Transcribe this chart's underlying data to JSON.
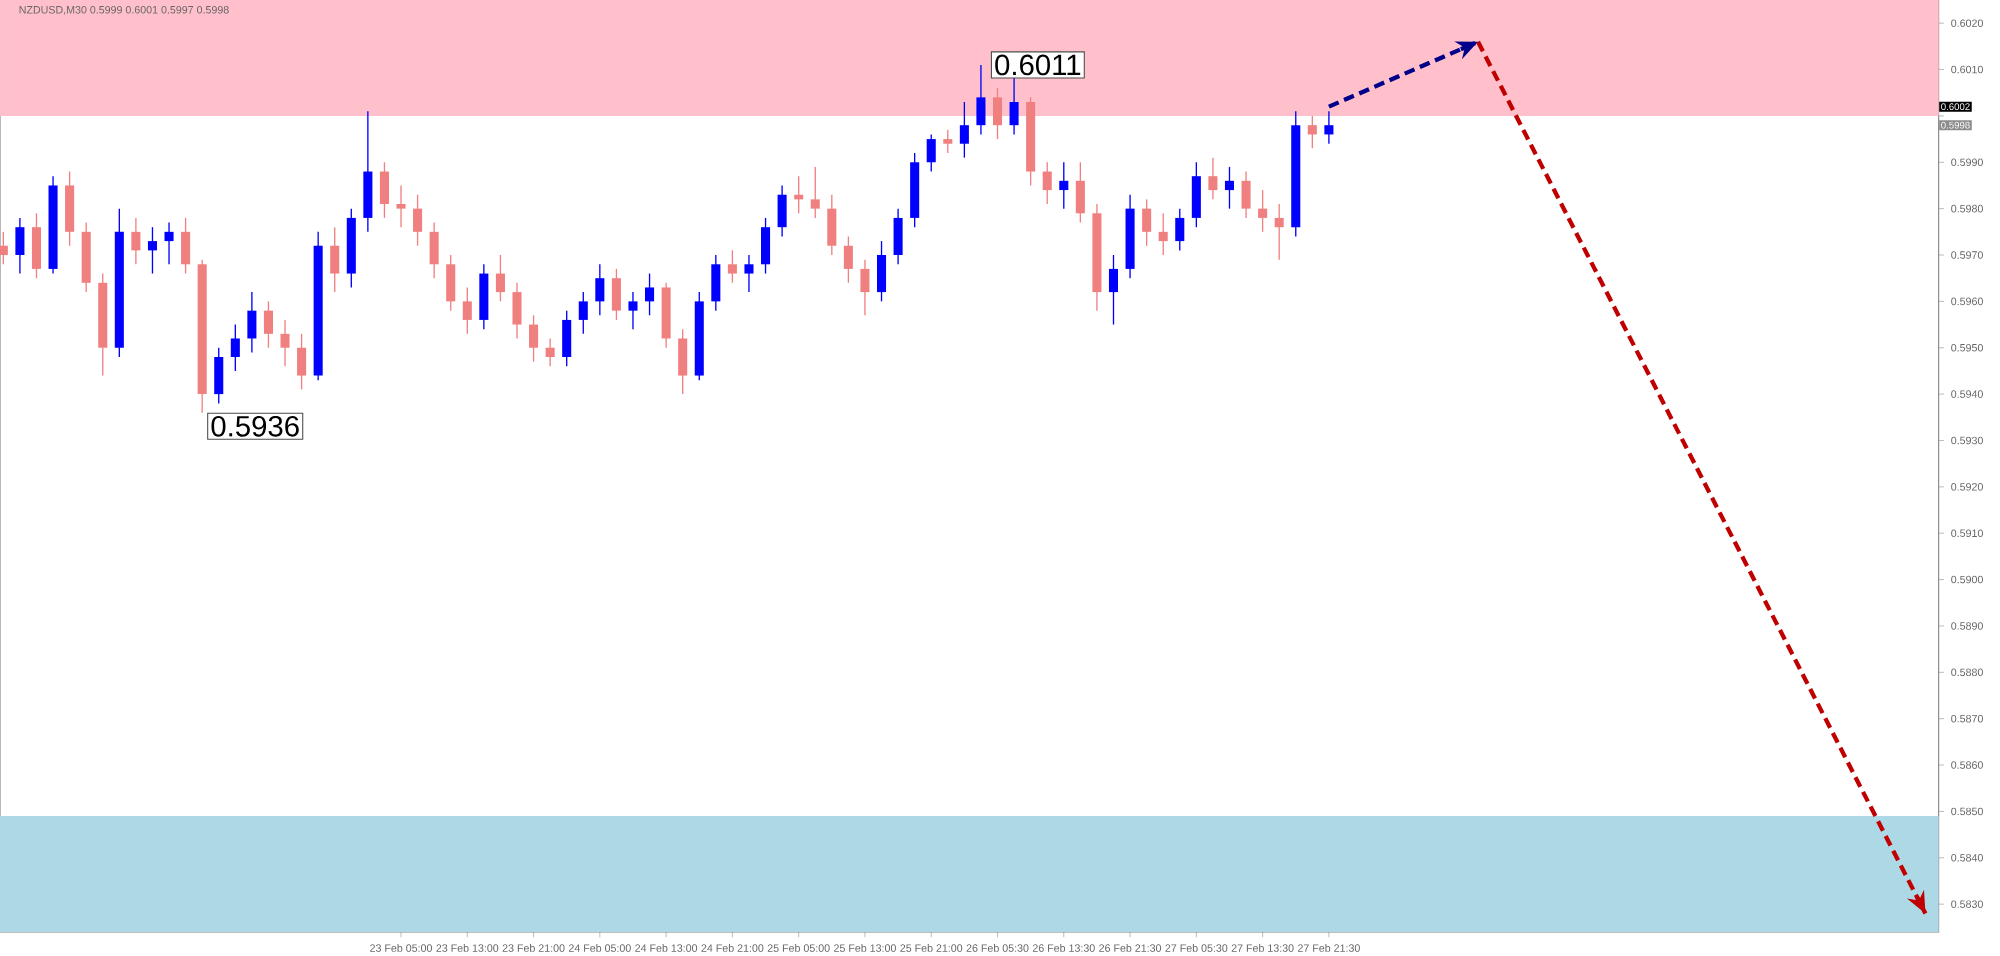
{
  "chart_data": {
    "type": "candlestick",
    "title": "NZDUSD,M30  0.5999 0.6001 0.5997 0.5998",
    "categories": [
      null,
      null,
      null,
      null,
      null,
      null,
      null,
      null,
      null,
      null,
      null,
      null,
      null,
      null,
      null,
      null,
      null,
      null,
      null,
      null,
      null,
      null,
      null,
      null,
      "23 Feb 05:00",
      null,
      null,
      null,
      "23 Feb 13:00",
      null,
      null,
      null,
      "23 Feb 21:00",
      null,
      null,
      null,
      "24 Feb 05:00",
      null,
      null,
      null,
      "24 Feb 13:00",
      null,
      null,
      null,
      "24 Feb 21:00",
      null,
      null,
      null,
      "25 Feb 05:00",
      null,
      null,
      null,
      "25 Feb 13:00",
      null,
      null,
      null,
      "25 Feb 21:00",
      null,
      null,
      null,
      "26 Feb 05:30",
      null,
      null,
      null,
      "26 Feb 13:30",
      null,
      null,
      null,
      "26 Feb 21:30",
      null,
      null,
      null,
      "27 Feb 05:30",
      null,
      null,
      null,
      "27 Feb 13:30",
      null,
      null,
      null,
      "27 Feb 21:30",
      null,
      null,
      null,
      null,
      null,
      null,
      null,
      null,
      null,
      null,
      null,
      null,
      null,
      null,
      null,
      null,
      null,
      null,
      null,
      null,
      null,
      null,
      null,
      null,
      null,
      null,
      null,
      null,
      null,
      null,
      null,
      null,
      null,
      null,
      null,
      null
    ],
    "ohlc": [
      [
        0.5972,
        0.5975,
        0.5968,
        0.597
      ],
      [
        0.597,
        0.5978,
        0.5966,
        0.5976
      ],
      [
        0.5976,
        0.5979,
        0.5965,
        0.5967
      ],
      [
        0.5967,
        0.5987,
        0.5966,
        0.5985
      ],
      [
        0.5985,
        0.5988,
        0.5972,
        0.5975
      ],
      [
        0.5975,
        0.5977,
        0.5962,
        0.5964
      ],
      [
        0.5964,
        0.5966,
        0.5944,
        0.595
      ],
      [
        0.595,
        0.598,
        0.5948,
        0.5975
      ],
      [
        0.5975,
        0.5978,
        0.5968,
        0.5971
      ],
      [
        0.5971,
        0.5976,
        0.5966,
        0.5973
      ],
      [
        0.5973,
        0.5977,
        0.5968,
        0.5975
      ],
      [
        0.5975,
        0.5978,
        0.5966,
        0.5968
      ],
      [
        0.5968,
        0.5969,
        0.5936,
        0.594
      ],
      [
        0.594,
        0.595,
        0.5938,
        0.5948
      ],
      [
        0.5948,
        0.5955,
        0.5945,
        0.5952
      ],
      [
        0.5952,
        0.5962,
        0.5949,
        0.5958
      ],
      [
        0.5958,
        0.596,
        0.595,
        0.5953
      ],
      [
        0.5953,
        0.5956,
        0.5946,
        0.595
      ],
      [
        0.595,
        0.5953,
        0.5941,
        0.5944
      ],
      [
        0.5944,
        0.5975,
        0.5943,
        0.5972
      ],
      [
        0.5972,
        0.5976,
        0.5962,
        0.5966
      ],
      [
        0.5966,
        0.598,
        0.5963,
        0.5978
      ],
      [
        0.5978,
        0.6001,
        0.5975,
        0.5988
      ],
      [
        0.5988,
        0.599,
        0.5978,
        0.5981
      ],
      [
        0.5981,
        0.5985,
        0.5976,
        0.598
      ],
      [
        0.598,
        0.5983,
        0.5972,
        0.5975
      ],
      [
        0.5975,
        0.5977,
        0.5965,
        0.5968
      ],
      [
        0.5968,
        0.597,
        0.5958,
        0.596
      ],
      [
        0.596,
        0.5963,
        0.5953,
        0.5956
      ],
      [
        0.5956,
        0.5968,
        0.5954,
        0.5966
      ],
      [
        0.5966,
        0.597,
        0.596,
        0.5962
      ],
      [
        0.5962,
        0.5964,
        0.5952,
        0.5955
      ],
      [
        0.5955,
        0.5957,
        0.5947,
        0.595
      ],
      [
        0.595,
        0.5952,
        0.5946,
        0.5948
      ],
      [
        0.5948,
        0.5958,
        0.5946,
        0.5956
      ],
      [
        0.5956,
        0.5962,
        0.5953,
        0.596
      ],
      [
        0.596,
        0.5968,
        0.5957,
        0.5965
      ],
      [
        0.5965,
        0.5967,
        0.5956,
        0.5958
      ],
      [
        0.5958,
        0.5962,
        0.5954,
        0.596
      ],
      [
        0.596,
        0.5966,
        0.5957,
        0.5963
      ],
      [
        0.5963,
        0.5964,
        0.595,
        0.5952
      ],
      [
        0.5952,
        0.5954,
        0.594,
        0.5944
      ],
      [
        0.5944,
        0.5962,
        0.5943,
        0.596
      ],
      [
        0.596,
        0.597,
        0.5958,
        0.5968
      ],
      [
        0.5968,
        0.5971,
        0.5964,
        0.5966
      ],
      [
        0.5966,
        0.597,
        0.5962,
        0.5968
      ],
      [
        0.5968,
        0.5978,
        0.5966,
        0.5976
      ],
      [
        0.5976,
        0.5985,
        0.5974,
        0.5983
      ],
      [
        0.5983,
        0.5987,
        0.5979,
        0.5982
      ],
      [
        0.5982,
        0.5989,
        0.5978,
        0.598
      ],
      [
        0.598,
        0.5983,
        0.597,
        0.5972
      ],
      [
        0.5972,
        0.5974,
        0.5964,
        0.5967
      ],
      [
        0.5967,
        0.5969,
        0.5957,
        0.5962
      ],
      [
        0.5962,
        0.5973,
        0.596,
        0.597
      ],
      [
        0.597,
        0.598,
        0.5968,
        0.5978
      ],
      [
        0.5978,
        0.5992,
        0.5976,
        0.599
      ],
      [
        0.599,
        0.5996,
        0.5988,
        0.5995
      ],
      [
        0.5995,
        0.5997,
        0.5992,
        0.5994
      ],
      [
        0.5994,
        0.6003,
        0.5991,
        0.5998
      ],
      [
        0.5998,
        0.6011,
        0.5996,
        0.6004
      ],
      [
        0.6004,
        0.6006,
        0.5995,
        0.5998
      ],
      [
        0.5998,
        0.6009,
        0.5996,
        0.6003
      ],
      [
        0.6003,
        0.6004,
        0.5985,
        0.5988
      ],
      [
        0.5988,
        0.599,
        0.5981,
        0.5984
      ],
      [
        0.5984,
        0.599,
        0.598,
        0.5986
      ],
      [
        0.5986,
        0.599,
        0.5977,
        0.5979
      ],
      [
        0.5979,
        0.5981,
        0.5958,
        0.5962
      ],
      [
        0.5962,
        0.597,
        0.5955,
        0.5967
      ],
      [
        0.5967,
        0.5983,
        0.5965,
        0.598
      ],
      [
        0.598,
        0.5982,
        0.5972,
        0.5975
      ],
      [
        0.5975,
        0.5979,
        0.597,
        0.5973
      ],
      [
        0.5973,
        0.598,
        0.5971,
        0.5978
      ],
      [
        0.5978,
        0.599,
        0.5976,
        0.5987
      ],
      [
        0.5987,
        0.5991,
        0.5982,
        0.5984
      ],
      [
        0.5984,
        0.5989,
        0.598,
        0.5986
      ],
      [
        0.5986,
        0.5988,
        0.5978,
        0.598
      ],
      [
        0.598,
        0.5984,
        0.5975,
        0.5978
      ],
      [
        0.5978,
        0.5981,
        0.5969,
        0.5976
      ],
      [
        0.5976,
        0.6001,
        0.5974,
        0.5998
      ],
      [
        0.5998,
        0.6,
        0.5993,
        0.5996
      ],
      [
        0.5996,
        0.6001,
        0.5994,
        0.5998
      ],
      null,
      null,
      null,
      null,
      null,
      null,
      null,
      null,
      null,
      null,
      null,
      null,
      null,
      null,
      null,
      null,
      null,
      null,
      null,
      null,
      null,
      null,
      null,
      null,
      null,
      null,
      null,
      null,
      null,
      null,
      null,
      null,
      null,
      null,
      null,
      null
    ],
    "colors": [
      "#f08080",
      "#0000ff",
      "#f08080",
      "#0000ff",
      "#f08080",
      "#f08080",
      "#f08080",
      "#0000ff",
      "#f08080",
      "#0000ff",
      "#0000ff",
      "#f08080",
      "#f08080",
      "#0000ff",
      "#0000ff",
      "#0000ff",
      "#f08080",
      "#f08080",
      "#f08080",
      "#0000ff",
      "#f08080",
      "#0000ff",
      "#0000ff",
      "#f08080",
      "#f08080",
      "#f08080",
      "#f08080",
      "#f08080",
      "#f08080",
      "#0000ff",
      "#f08080",
      "#f08080",
      "#f08080",
      "#f08080",
      "#0000ff",
      "#0000ff",
      "#0000ff",
      "#f08080",
      "#0000ff",
      "#0000ff",
      "#f08080",
      "#f08080",
      "#0000ff",
      "#0000ff",
      "#f08080",
      "#0000ff",
      "#0000ff",
      "#0000ff",
      "#f08080",
      "#f08080",
      "#f08080",
      "#f08080",
      "#f08080",
      "#0000ff",
      "#0000ff",
      "#0000ff",
      "#0000ff",
      "#f08080",
      "#0000ff",
      "#0000ff",
      "#f08080",
      "#0000ff",
      "#f08080",
      "#f08080",
      "#0000ff",
      "#f08080",
      "#f08080",
      "#0000ff",
      "#0000ff",
      "#f08080",
      "#f08080",
      "#0000ff",
      "#0000ff",
      "#f08080",
      "#0000ff",
      "#f08080",
      "#f08080",
      "#f08080",
      "#0000ff",
      "#f08080",
      "#0000ff",
      null,
      null,
      null,
      null,
      null,
      null,
      null,
      null,
      null,
      null,
      null,
      null,
      null,
      null,
      null,
      null,
      null,
      null,
      null,
      null,
      null,
      null,
      null,
      null,
      null,
      null,
      null,
      null,
      null,
      null,
      null,
      null,
      null,
      null,
      null,
      null
    ],
    "series": [
      {
        "type": "line",
        "color": "#00008b",
        "line_style": "dashed",
        "values": [
          null,
          null,
          null,
          null,
          null,
          null,
          null,
          null,
          null,
          null,
          null,
          null,
          null,
          null,
          null,
          null,
          null,
          null,
          null,
          null,
          null,
          null,
          null,
          null,
          null,
          null,
          null,
          null,
          null,
          null,
          null,
          null,
          null,
          null,
          null,
          null,
          null,
          null,
          null,
          null,
          null,
          null,
          null,
          null,
          null,
          null,
          null,
          null,
          null,
          null,
          null,
          null,
          null,
          null,
          null,
          null,
          null,
          null,
          null,
          null,
          null,
          null,
          null,
          null,
          null,
          null,
          null,
          null,
          null,
          null,
          null,
          null,
          null,
          null,
          null,
          null,
          null,
          null,
          null,
          null,
          0.6002,
          null,
          null,
          null,
          null,
          null,
          null,
          null,
          null,
          0.6016,
          null,
          null,
          null,
          null,
          null,
          null,
          null,
          null,
          null,
          null,
          null,
          null,
          null,
          null,
          null,
          null,
          null,
          null,
          null,
          null,
          null,
          null,
          null,
          null,
          null,
          null,
          null
        ]
      },
      {
        "type": "line",
        "color": "#c00000",
        "line_style": "dashed",
        "values": [
          null,
          null,
          null,
          null,
          null,
          null,
          null,
          null,
          null,
          null,
          null,
          null,
          null,
          null,
          null,
          null,
          null,
          null,
          null,
          null,
          null,
          null,
          null,
          null,
          null,
          null,
          null,
          null,
          null,
          null,
          null,
          null,
          null,
          null,
          null,
          null,
          null,
          null,
          null,
          null,
          null,
          null,
          null,
          null,
          null,
          null,
          null,
          null,
          null,
          null,
          null,
          null,
          null,
          null,
          null,
          null,
          null,
          null,
          null,
          null,
          null,
          null,
          null,
          null,
          null,
          null,
          null,
          null,
          null,
          null,
          null,
          null,
          null,
          null,
          null,
          null,
          null,
          null,
          null,
          null,
          null,
          null,
          null,
          null,
          null,
          null,
          null,
          null,
          null,
          0.6016,
          null,
          null,
          null,
          null,
          null,
          null,
          null,
          null,
          null,
          null,
          null,
          null,
          null,
          null,
          null,
          null,
          null,
          null,
          null,
          null,
          null,
          null,
          null,
          null,
          null,
          null,
          0.5828
        ]
      }
    ],
    "ylim": [
      0.5824,
      0.6025
    ],
    "yticks": [
      {
        "value": 0.583,
        "label": "0.5830"
      },
      {
        "value": 0.584,
        "label": "0.5840"
      },
      {
        "value": 0.585,
        "label": "0.5850"
      },
      {
        "value": 0.586,
        "label": "0.5860"
      },
      {
        "value": 0.587,
        "label": "0.5870"
      },
      {
        "value": 0.588,
        "label": "0.5880"
      },
      {
        "value": 0.589,
        "label": "0.5890"
      },
      {
        "value": 0.59,
        "label": "0.5900"
      },
      {
        "value": 0.591,
        "label": "0.5910"
      },
      {
        "value": 0.592,
        "label": "0.5920"
      },
      {
        "value": 0.593,
        "label": "0.5930"
      },
      {
        "value": 0.594,
        "label": "0.5940"
      },
      {
        "value": 0.595,
        "label": "0.5950"
      },
      {
        "value": 0.596,
        "label": "0.5960"
      },
      {
        "value": 0.597,
        "label": "0.5970"
      },
      {
        "value": 0.598,
        "label": "0.5980"
      },
      {
        "value": 0.599,
        "label": "0.5990"
      },
      {
        "value": 0.6,
        "label": null
      },
      {
        "value": 0.601,
        "label": "0.6010"
      },
      {
        "value": 0.602,
        "label": "0.6020"
      }
    ],
    "bands": [
      {
        "axis": "y",
        "from": 0.6,
        "to": 0.6025,
        "color": "#ffc0cb"
      },
      {
        "axis": "y",
        "from": 0.5824,
        "to": 0.5849,
        "color": "#add8e6"
      }
    ],
    "annotations": [
      "0.5936",
      "0.6011",
      {
        "text": "0.6002",
        "y": 0.6002
      },
      {
        "text": "0.5998",
        "y": 0.5998
      }
    ]
  }
}
